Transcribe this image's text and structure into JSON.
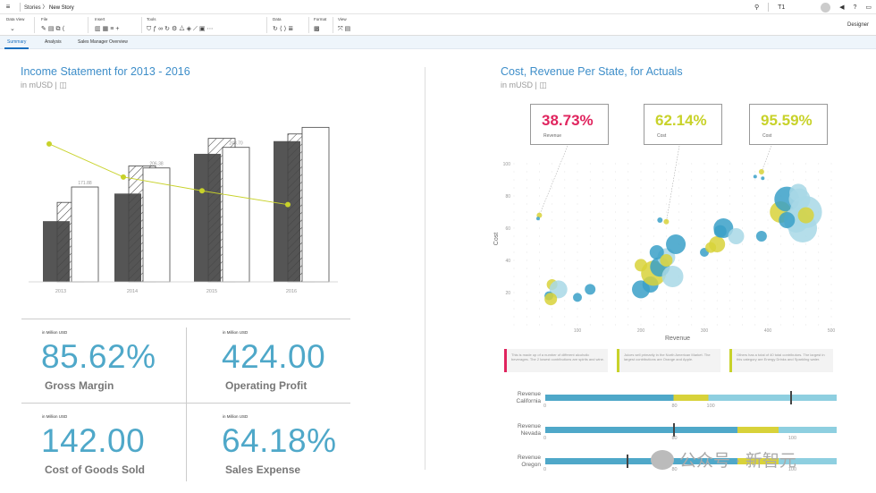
{
  "topbar": {
    "breadcrumb_parent": "Stories",
    "breadcrumb_current": "New Story",
    "tenant": "T1"
  },
  "toolbar": {
    "groups": [
      {
        "label": "Data View"
      },
      {
        "label": "File"
      },
      {
        "label": "Insert"
      },
      {
        "label": "Tools"
      },
      {
        "label": "Data"
      },
      {
        "label": "Format"
      },
      {
        "label": "View"
      }
    ],
    "mode": "Designer"
  },
  "tabs": [
    "Summary",
    "Analysis",
    "Sales Manager Overview"
  ],
  "income": {
    "title": "Income Statement for 2013 - 2016",
    "subtitle": "in mUSD |",
    "chart_data": {
      "type": "bar",
      "categories": [
        "2013",
        "2014",
        "2015",
        "2016"
      ],
      "series": [
        {
          "values": [
            110,
            160,
            232,
            255
          ]
        },
        {
          "values": [
            144,
            210,
            260,
            268
          ]
        },
        {
          "values": [
            171.88,
            206.38,
            243.7,
            280
          ]
        }
      ],
      "line": [
        250,
        190,
        165,
        140
      ],
      "data_labels": [
        "171.88",
        "206.38",
        "243.70"
      ],
      "ylim": [
        0,
        300
      ]
    }
  },
  "kpis": [
    {
      "unit": "in Million USD",
      "value": "85.62%",
      "label": "Gross Margin"
    },
    {
      "unit": "in Million USD",
      "value": "424.00",
      "label": "Operating Profit"
    },
    {
      "unit": "in Million USD",
      "value": "142.00",
      "label": "Cost of Goods Sold"
    },
    {
      "unit": "in Million USD",
      "value": "64.18%",
      "label": "Sales Expense"
    }
  ],
  "cost": {
    "title": "Cost, Revenue Per State, for Actuals",
    "subtitle": "in mUSD |",
    "callouts": [
      {
        "value": "38.73%",
        "label": "Revenue",
        "color": "#e0245e"
      },
      {
        "value": "62.14%",
        "label": "Cost",
        "color": "#c8d22a"
      },
      {
        "value": "95.59%",
        "label": "Cost",
        "color": "#c8d22a"
      }
    ],
    "chart_data": {
      "type": "scatter",
      "xlabel": "Revenue",
      "ylabel": "Cost",
      "xlim": [
        0,
        500
      ],
      "ylim": [
        0,
        100
      ],
      "xticks": [
        100,
        200,
        300,
        400,
        500
      ],
      "yticks": [
        20,
        40,
        60,
        80,
        100
      ],
      "points": [
        [
          40,
          68,
          3,
          "#d8d23a"
        ],
        [
          38,
          66,
          2,
          "#3aa0c8"
        ],
        [
          60,
          25,
          6,
          "#d8d23a"
        ],
        [
          70,
          22,
          10,
          "#a8d8e6"
        ],
        [
          55,
          18,
          5,
          "#3aa0c8"
        ],
        [
          58,
          16,
          7,
          "#d8d23a"
        ],
        [
          100,
          17,
          5,
          "#3aa0c8"
        ],
        [
          120,
          22,
          6,
          "#3aa0c8"
        ],
        [
          215,
          25,
          9,
          "#3aa0c8"
        ],
        [
          200,
          22,
          10,
          "#3aa0c8"
        ],
        [
          220,
          32,
          14,
          "#d8d23a"
        ],
        [
          230,
          36,
          11,
          "#3aa0c8"
        ],
        [
          250,
          30,
          12,
          "#a8d8e6"
        ],
        [
          240,
          42,
          10,
          "#a8d8e6"
        ],
        [
          255,
          50,
          11,
          "#3aa0c8"
        ],
        [
          225,
          45,
          8,
          "#3aa0c8"
        ],
        [
          200,
          37,
          7,
          "#d8d23a"
        ],
        [
          240,
          40,
          7,
          "#d8d23a"
        ],
        [
          230,
          65,
          3,
          "#3aa0c8"
        ],
        [
          240,
          64,
          3,
          "#d8d23a"
        ],
        [
          300,
          45,
          5,
          "#3aa0c8"
        ],
        [
          320,
          50,
          9,
          "#d8d23a"
        ],
        [
          330,
          60,
          11,
          "#3aa0c8"
        ],
        [
          350,
          55,
          9,
          "#a8d8e6"
        ],
        [
          310,
          48,
          6,
          "#d8d23a"
        ],
        [
          325,
          58,
          7,
          "#3aa0c8"
        ],
        [
          390,
          55,
          6,
          "#3aa0c8"
        ],
        [
          420,
          70,
          12,
          "#d8d23a"
        ],
        [
          430,
          78,
          14,
          "#3aa0c8"
        ],
        [
          450,
          78,
          12,
          "#a8d8e6"
        ],
        [
          460,
          70,
          18,
          "#a8d8e6"
        ],
        [
          445,
          65,
          14,
          "#a8d8e6"
        ],
        [
          455,
          60,
          16,
          "#a8d8e6"
        ],
        [
          430,
          65,
          9,
          "#3aa0c8"
        ],
        [
          460,
          68,
          9,
          "#d8d23a"
        ],
        [
          390,
          95,
          3,
          "#d8d23a"
        ],
        [
          380,
          92,
          2,
          "#3aa0c8"
        ],
        [
          392,
          91,
          2,
          "#3aa0c8"
        ],
        [
          448,
          82,
          10,
          "#a8d8e6"
        ]
      ]
    },
    "notes": [
      {
        "text": "This is made up of a number of different alcoholic beverages. The 2 lowest contributions are spirits and wine.",
        "color": "#e0245e"
      },
      {
        "text": "Juices sell primarily in the North American Market. The largest contributions are Orange and Apple.",
        "color": "#c8d22a"
      },
      {
        "text": "Others has a total of 40 total contributors. The largest in this category are Energy Drinks and Sparkling water.",
        "color": "#c8d22a"
      }
    ],
    "bullets": [
      {
        "label1": "Revenue",
        "label2": "California",
        "ticks": [
          "0",
          "80",
          "100"
        ],
        "actual": 0.44,
        "band1": 0.44,
        "band2": 0.56,
        "target": 0.84
      },
      {
        "label1": "Revenue",
        "label2": "Nevada",
        "ticks": [
          "0",
          "80",
          "100"
        ],
        "actual": 0.66,
        "band1": 0.66,
        "band2": 0.8,
        "target": 0.44
      },
      {
        "label1": "Revenue",
        "label2": "Oregon",
        "ticks": [
          "0",
          "80",
          "100"
        ],
        "actual": 0.66,
        "band1": 0.66,
        "band2": 0.8,
        "target": 0.28
      }
    ]
  },
  "watermark": "公众号 · 新智元"
}
